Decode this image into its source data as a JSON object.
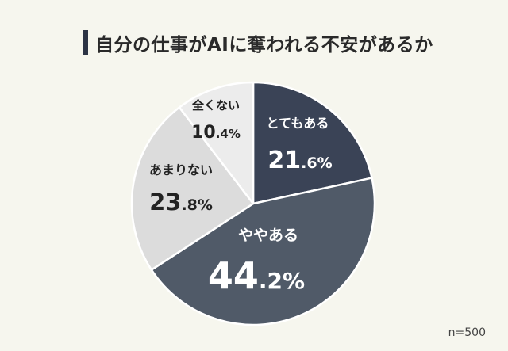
{
  "title": "自分の仕事がAIに奪われる不安があるか",
  "sample_size": "n=500",
  "chart_data": {
    "type": "pie",
    "title": "自分の仕事がAIに奪われる不安があるか",
    "categories": [
      "とてもある",
      "ややある",
      "あまりない",
      "全くない"
    ],
    "values": [
      21.6,
      44.2,
      23.8,
      10.4
    ],
    "value_labels": [
      {
        "int": "21",
        "dec": ".6",
        "unit": "%"
      },
      {
        "int": "44",
        "dec": ".2",
        "unit": "%"
      },
      {
        "int": "23",
        "dec": ".8",
        "unit": "%"
      },
      {
        "int": "10",
        "dec": ".4",
        "unit": "%"
      }
    ],
    "colors": [
      "#3a4356",
      "#505a68",
      "#dcdcdc",
      "#ececec"
    ],
    "label_colors": [
      "#ffffff",
      "#ffffff",
      "#222222",
      "#222222"
    ],
    "start_angle": "12 o'clock",
    "direction": "clockwise",
    "legend": "none"
  }
}
